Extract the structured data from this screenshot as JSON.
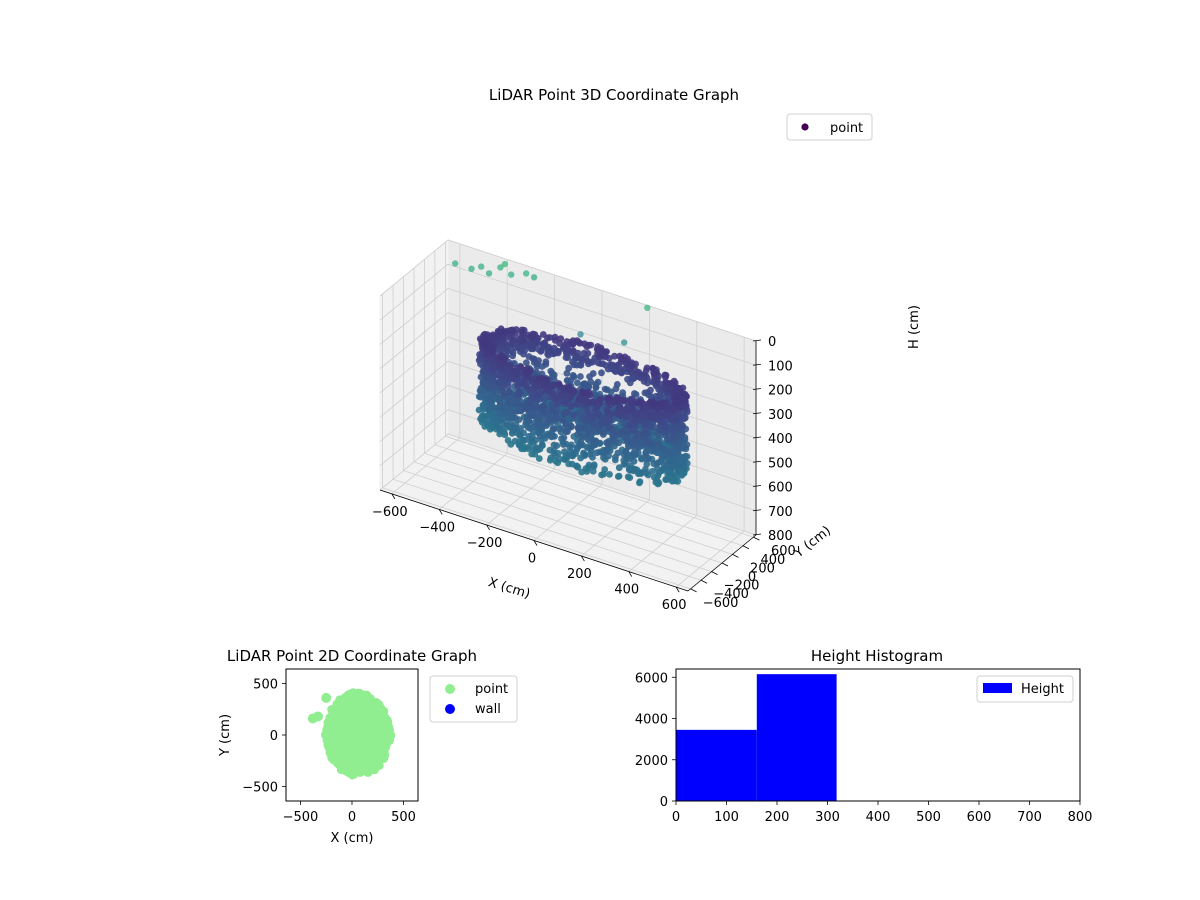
{
  "chart_data": [
    {
      "type": "scatter",
      "projection": "3d",
      "title": "LiDAR Point 3D Coordinate Graph",
      "xlabel": "X (cm)",
      "ylabel": "Y (cm)",
      "zlabel": "H (cm)",
      "xlim": [
        -650,
        650
      ],
      "ylim": [
        -650,
        650
      ],
      "zlim": [
        800,
        0
      ],
      "xticks": [
        "−600",
        "−400",
        "−200",
        "0",
        "200",
        "400",
        "600"
      ],
      "yticks": [
        "−600",
        "−400",
        "−200",
        "0",
        "200",
        "400",
        "600"
      ],
      "zticks": [
        "0",
        "100",
        "200",
        "300",
        "400",
        "500",
        "600",
        "700",
        "800"
      ],
      "grid": true,
      "legend": {
        "position": "top-right",
        "entries": [
          {
            "label": "point",
            "color": "#440154"
          }
        ]
      },
      "colormap": "viridis",
      "color_by": "height",
      "series": [
        {
          "name": "point",
          "ring": {
            "center": [
              60,
              20
            ],
            "radius": [
              380,
              430
            ],
            "h_range": [
              180,
              520
            ]
          },
          "outliers": [
            {
              "x": -560,
              "y": 380,
              "h": 20
            },
            {
              "x": -500,
              "y": 420,
              "h": 30
            },
            {
              "x": -470,
              "y": 470,
              "h": 20
            },
            {
              "x": -430,
              "y": 440,
              "h": 30
            },
            {
              "x": -400,
              "y": 520,
              "h": 10
            },
            {
              "x": -390,
              "y": 560,
              "h": 0
            },
            {
              "x": -350,
              "y": 500,
              "h": 20
            },
            {
              "x": -300,
              "y": 560,
              "h": 10
            },
            {
              "x": -280,
              "y": 620,
              "h": 30
            },
            {
              "x": 200,
              "y": 610,
              "h": 0
            },
            {
              "x": 160,
              "y": 350,
              "h": 110
            },
            {
              "x": -20,
              "y": 330,
              "h": 130
            }
          ]
        }
      ]
    },
    {
      "type": "scatter",
      "title": "LiDAR Point 2D Coordinate Graph",
      "xlabel": "X (cm)",
      "ylabel": "Y (cm)",
      "xlim": [
        -640,
        640
      ],
      "ylim": [
        -640,
        640
      ],
      "xticks": [
        -500,
        0,
        500
      ],
      "yticks": [
        -500,
        0,
        500
      ],
      "legend": {
        "position": "outside-right",
        "entries": [
          {
            "label": "point",
            "color": "#90ee90"
          },
          {
            "label": "wall",
            "color": "#0000ff"
          }
        ]
      },
      "series": [
        {
          "name": "point",
          "color": "#90ee90",
          "blob": {
            "center": [
              60,
              0
            ],
            "rx": [
              -270,
              380
            ],
            "ry": [
              -400,
              420
            ]
          },
          "extra": [
            {
              "x": -250,
              "y": 360
            },
            {
              "x": -330,
              "y": 180
            },
            {
              "x": -380,
              "y": 160
            }
          ]
        },
        {
          "name": "wall",
          "color": "#0000ff",
          "points": []
        }
      ]
    },
    {
      "type": "bar",
      "title": "Height Histogram",
      "xlim": [
        0,
        800
      ],
      "ylim": [
        0,
        6400
      ],
      "xticks": [
        0,
        100,
        200,
        300,
        400,
        500,
        600,
        700,
        800
      ],
      "yticks": [
        0,
        2000,
        4000,
        6000
      ],
      "legend": {
        "position": "top-right",
        "entries": [
          {
            "label": "Height",
            "color": "#0000ff"
          }
        ]
      },
      "series": [
        {
          "name": "Height",
          "color": "#0000ff",
          "bins": [
            {
              "x0": 0,
              "x1": 160,
              "count": 3450
            },
            {
              "x0": 160,
              "x1": 318,
              "count": 6150
            }
          ]
        }
      ]
    }
  ]
}
